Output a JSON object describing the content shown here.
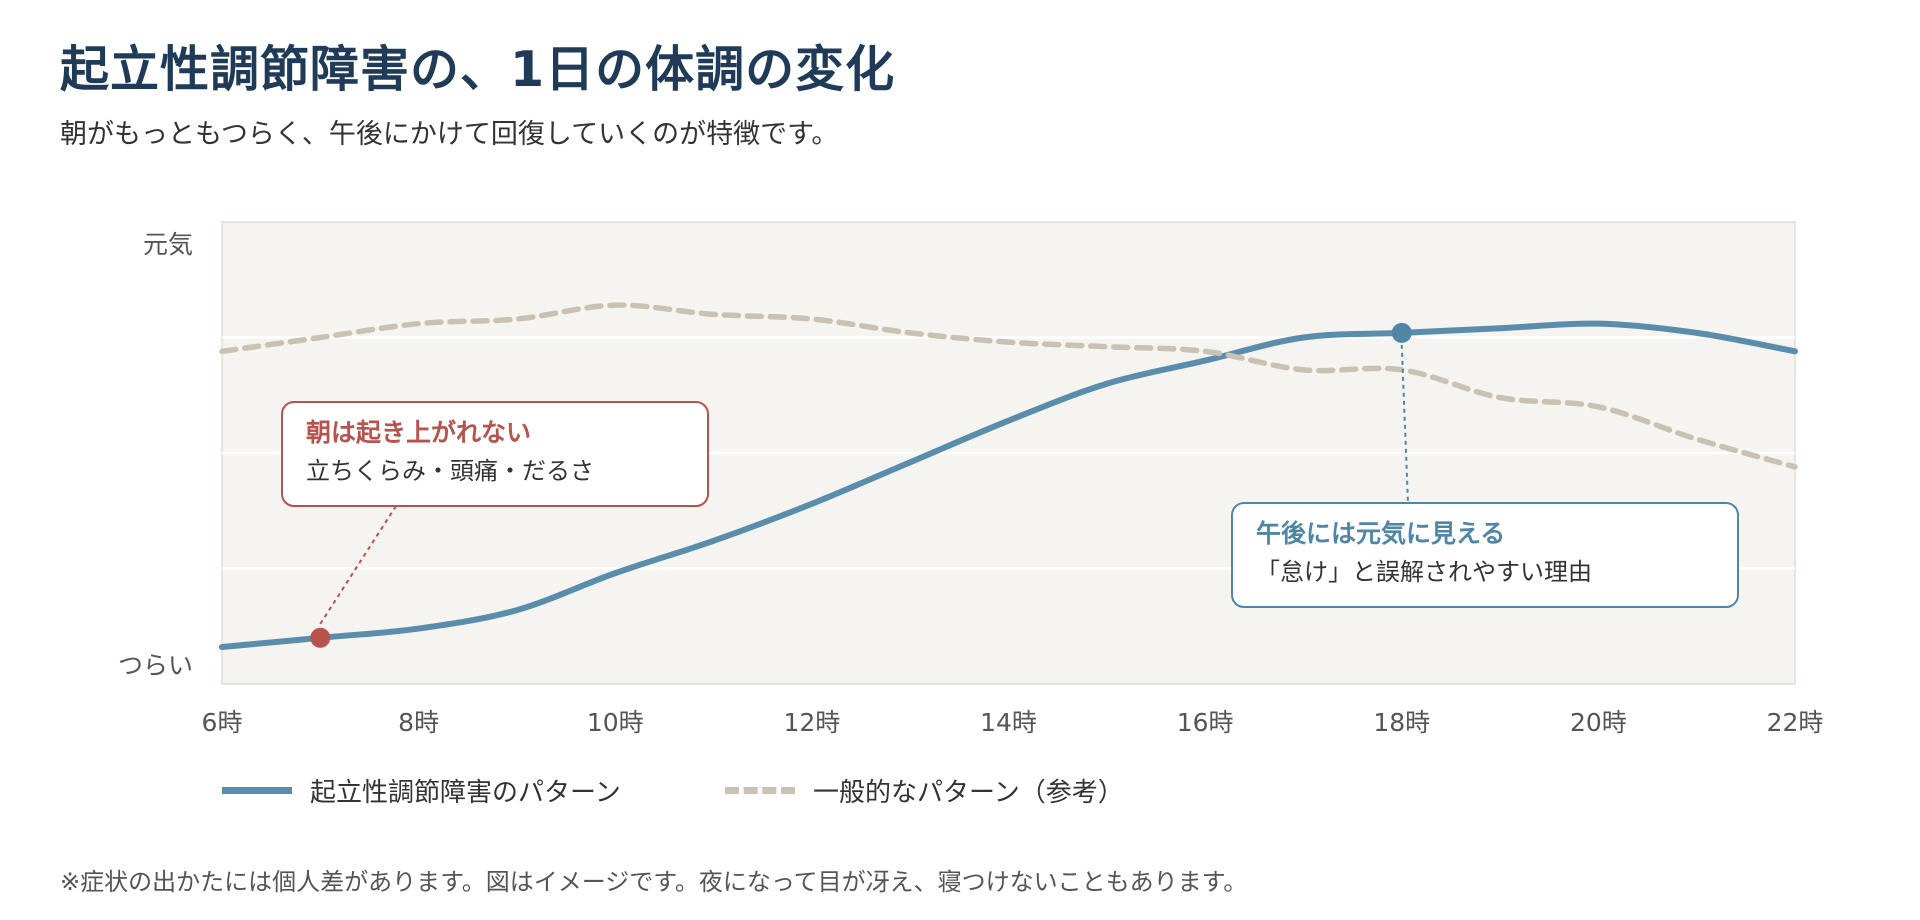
{
  "header": {
    "title": "起立性調節障害の、1日の体調の変化",
    "subtitle": "朝がもっともつらく、午後にかけて回復していくのが特徴です。"
  },
  "colors": {
    "main": "#5a8dab",
    "reference": "#c9c1b2",
    "morning_callout": "#b8524d",
    "afternoon_callout": "#4f86a6",
    "plot_background": "#f5f4f1"
  },
  "legend": {
    "main_label": "起立性調節障害のパターン",
    "reference_label": "一般的なパターン（参考）"
  },
  "note": "※症状の出かたには個人差があります。図はイメージです。夜になって目が冴え、寝つけないこともあります。",
  "chart_data": {
    "type": "line",
    "x_ticks": [
      6,
      8,
      10,
      12,
      14,
      16,
      18,
      20,
      22
    ],
    "x_tick_labels": [
      "6時",
      "8時",
      "10時",
      "12時",
      "14時",
      "16時",
      "18時",
      "20時",
      "22時"
    ],
    "y_labels": {
      "top": "元気",
      "bottom": "つらい"
    },
    "xlim": [
      6,
      22
    ],
    "ylim": [
      0,
      100
    ],
    "grid": true,
    "legend_position": "bottom-left",
    "series": [
      {
        "name": "起立性調節障害のパターン",
        "style": "solid",
        "x": [
          6,
          7,
          8,
          9,
          10,
          11,
          12,
          13,
          14,
          15,
          16,
          17,
          18,
          19,
          20,
          21,
          22
        ],
        "y": [
          8,
          10,
          12,
          16,
          24,
          31,
          39,
          48,
          57,
          65,
          70,
          75,
          76,
          77,
          78,
          76,
          72
        ]
      },
      {
        "name": "一般的なパターン（参考）",
        "style": "dashed",
        "x": [
          6,
          7,
          8,
          9,
          10,
          11,
          12,
          13,
          14,
          15,
          16,
          17,
          18,
          19,
          20,
          21,
          22
        ],
        "y": [
          72,
          75,
          78,
          79,
          82,
          80,
          79,
          76,
          74,
          73,
          72,
          68,
          68,
          62,
          60,
          53,
          47
        ]
      }
    ],
    "annotations": [
      {
        "x": 7,
        "y": 10,
        "series": "起立性調節障害のパターン",
        "title": "朝は起き上がれない",
        "text": "立ちくらみ・頭痛・だるさ"
      },
      {
        "x": 18,
        "y": 76,
        "series": "起立性調節障害のパターン",
        "title": "午後には元気に見える",
        "text": "「怠け」と誤解されやすい理由"
      }
    ]
  }
}
